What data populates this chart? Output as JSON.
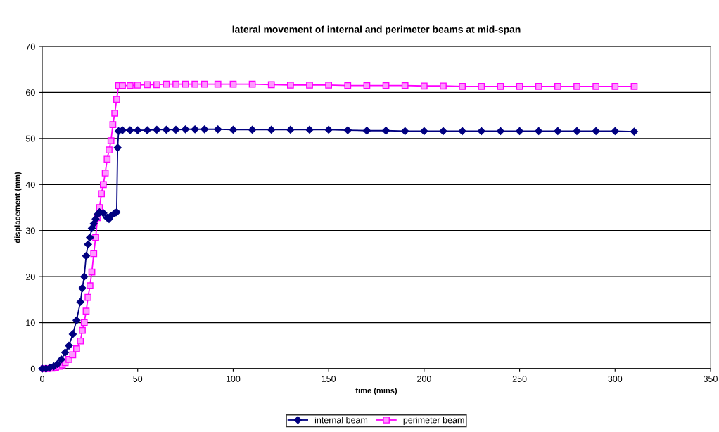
{
  "chart_data": {
    "type": "line",
    "title": "lateral movement of internal and perimeter beams at mid-span",
    "xlabel": "time (mins)",
    "ylabel": "displacement (mm)",
    "xlim": [
      0,
      350
    ],
    "xticks": [
      0,
      50,
      100,
      150,
      200,
      250,
      300,
      350
    ],
    "ylim": [
      0,
      70
    ],
    "yticks": [
      0,
      10,
      20,
      30,
      40,
      50,
      60,
      70
    ],
    "grid": "y",
    "legend": "bottom",
    "series": [
      {
        "name": "internal beam",
        "color": "#000080",
        "marker": "diamond",
        "x": [
          0,
          2,
          4,
          6,
          8,
          10,
          12,
          14,
          16,
          18,
          20,
          21,
          22,
          23,
          24,
          25,
          26,
          27,
          28,
          29,
          30,
          32,
          34,
          35,
          36,
          38,
          39,
          39.5,
          40,
          42,
          46,
          50,
          55,
          60,
          65,
          70,
          75,
          80,
          85,
          92,
          100,
          110,
          120,
          130,
          140,
          150,
          160,
          170,
          180,
          190,
          200,
          210,
          220,
          230,
          240,
          250,
          260,
          270,
          280,
          290,
          300,
          310
        ],
        "values": [
          0,
          0,
          0.2,
          0.5,
          1,
          2,
          3.5,
          5,
          7.5,
          10.5,
          14.5,
          17.5,
          20,
          24.5,
          27,
          28.5,
          30.5,
          31.5,
          32.5,
          33.5,
          34,
          33.8,
          32.8,
          32.5,
          33.2,
          33.8,
          34,
          48,
          51.6,
          51.8,
          51.8,
          51.8,
          51.8,
          51.9,
          51.9,
          51.9,
          52,
          52,
          52,
          52,
          51.9,
          51.9,
          51.9,
          51.9,
          51.9,
          51.9,
          51.8,
          51.7,
          51.7,
          51.6,
          51.6,
          51.6,
          51.6,
          51.6,
          51.6,
          51.6,
          51.6,
          51.6,
          51.6,
          51.6,
          51.6,
          51.5
        ]
      },
      {
        "name": "perimeter beam",
        "color": "#ff00ff",
        "marker": "square",
        "x": [
          1,
          3,
          5,
          7,
          9,
          10.5,
          12,
          14,
          16,
          18,
          20,
          21,
          22,
          23,
          24,
          25,
          26,
          27,
          28,
          29,
          30,
          31,
          32,
          33,
          34,
          35,
          36,
          37,
          38,
          39,
          40,
          42,
          46,
          50,
          55,
          60,
          65,
          70,
          75,
          80,
          85,
          92,
          100,
          110,
          120,
          130,
          140,
          150,
          160,
          170,
          180,
          190,
          200,
          210,
          220,
          230,
          240,
          250,
          260,
          270,
          280,
          290,
          300,
          310
        ],
        "values": [
          0,
          0,
          0.1,
          0.3,
          0.5,
          0.8,
          1.3,
          2,
          3,
          4.3,
          6,
          8.3,
          10,
          12.5,
          15.5,
          18,
          21,
          25,
          28.5,
          32.8,
          35,
          38,
          40,
          42.5,
          45.5,
          47.5,
          49.5,
          53,
          55.5,
          58.5,
          61.5,
          61.5,
          61.5,
          61.6,
          61.7,
          61.7,
          61.8,
          61.8,
          61.8,
          61.8,
          61.8,
          61.8,
          61.8,
          61.8,
          61.7,
          61.6,
          61.6,
          61.6,
          61.5,
          61.5,
          61.5,
          61.5,
          61.4,
          61.4,
          61.3,
          61.3,
          61.3,
          61.3,
          61.3,
          61.3,
          61.3,
          61.3,
          61.3,
          61.3
        ]
      }
    ]
  }
}
